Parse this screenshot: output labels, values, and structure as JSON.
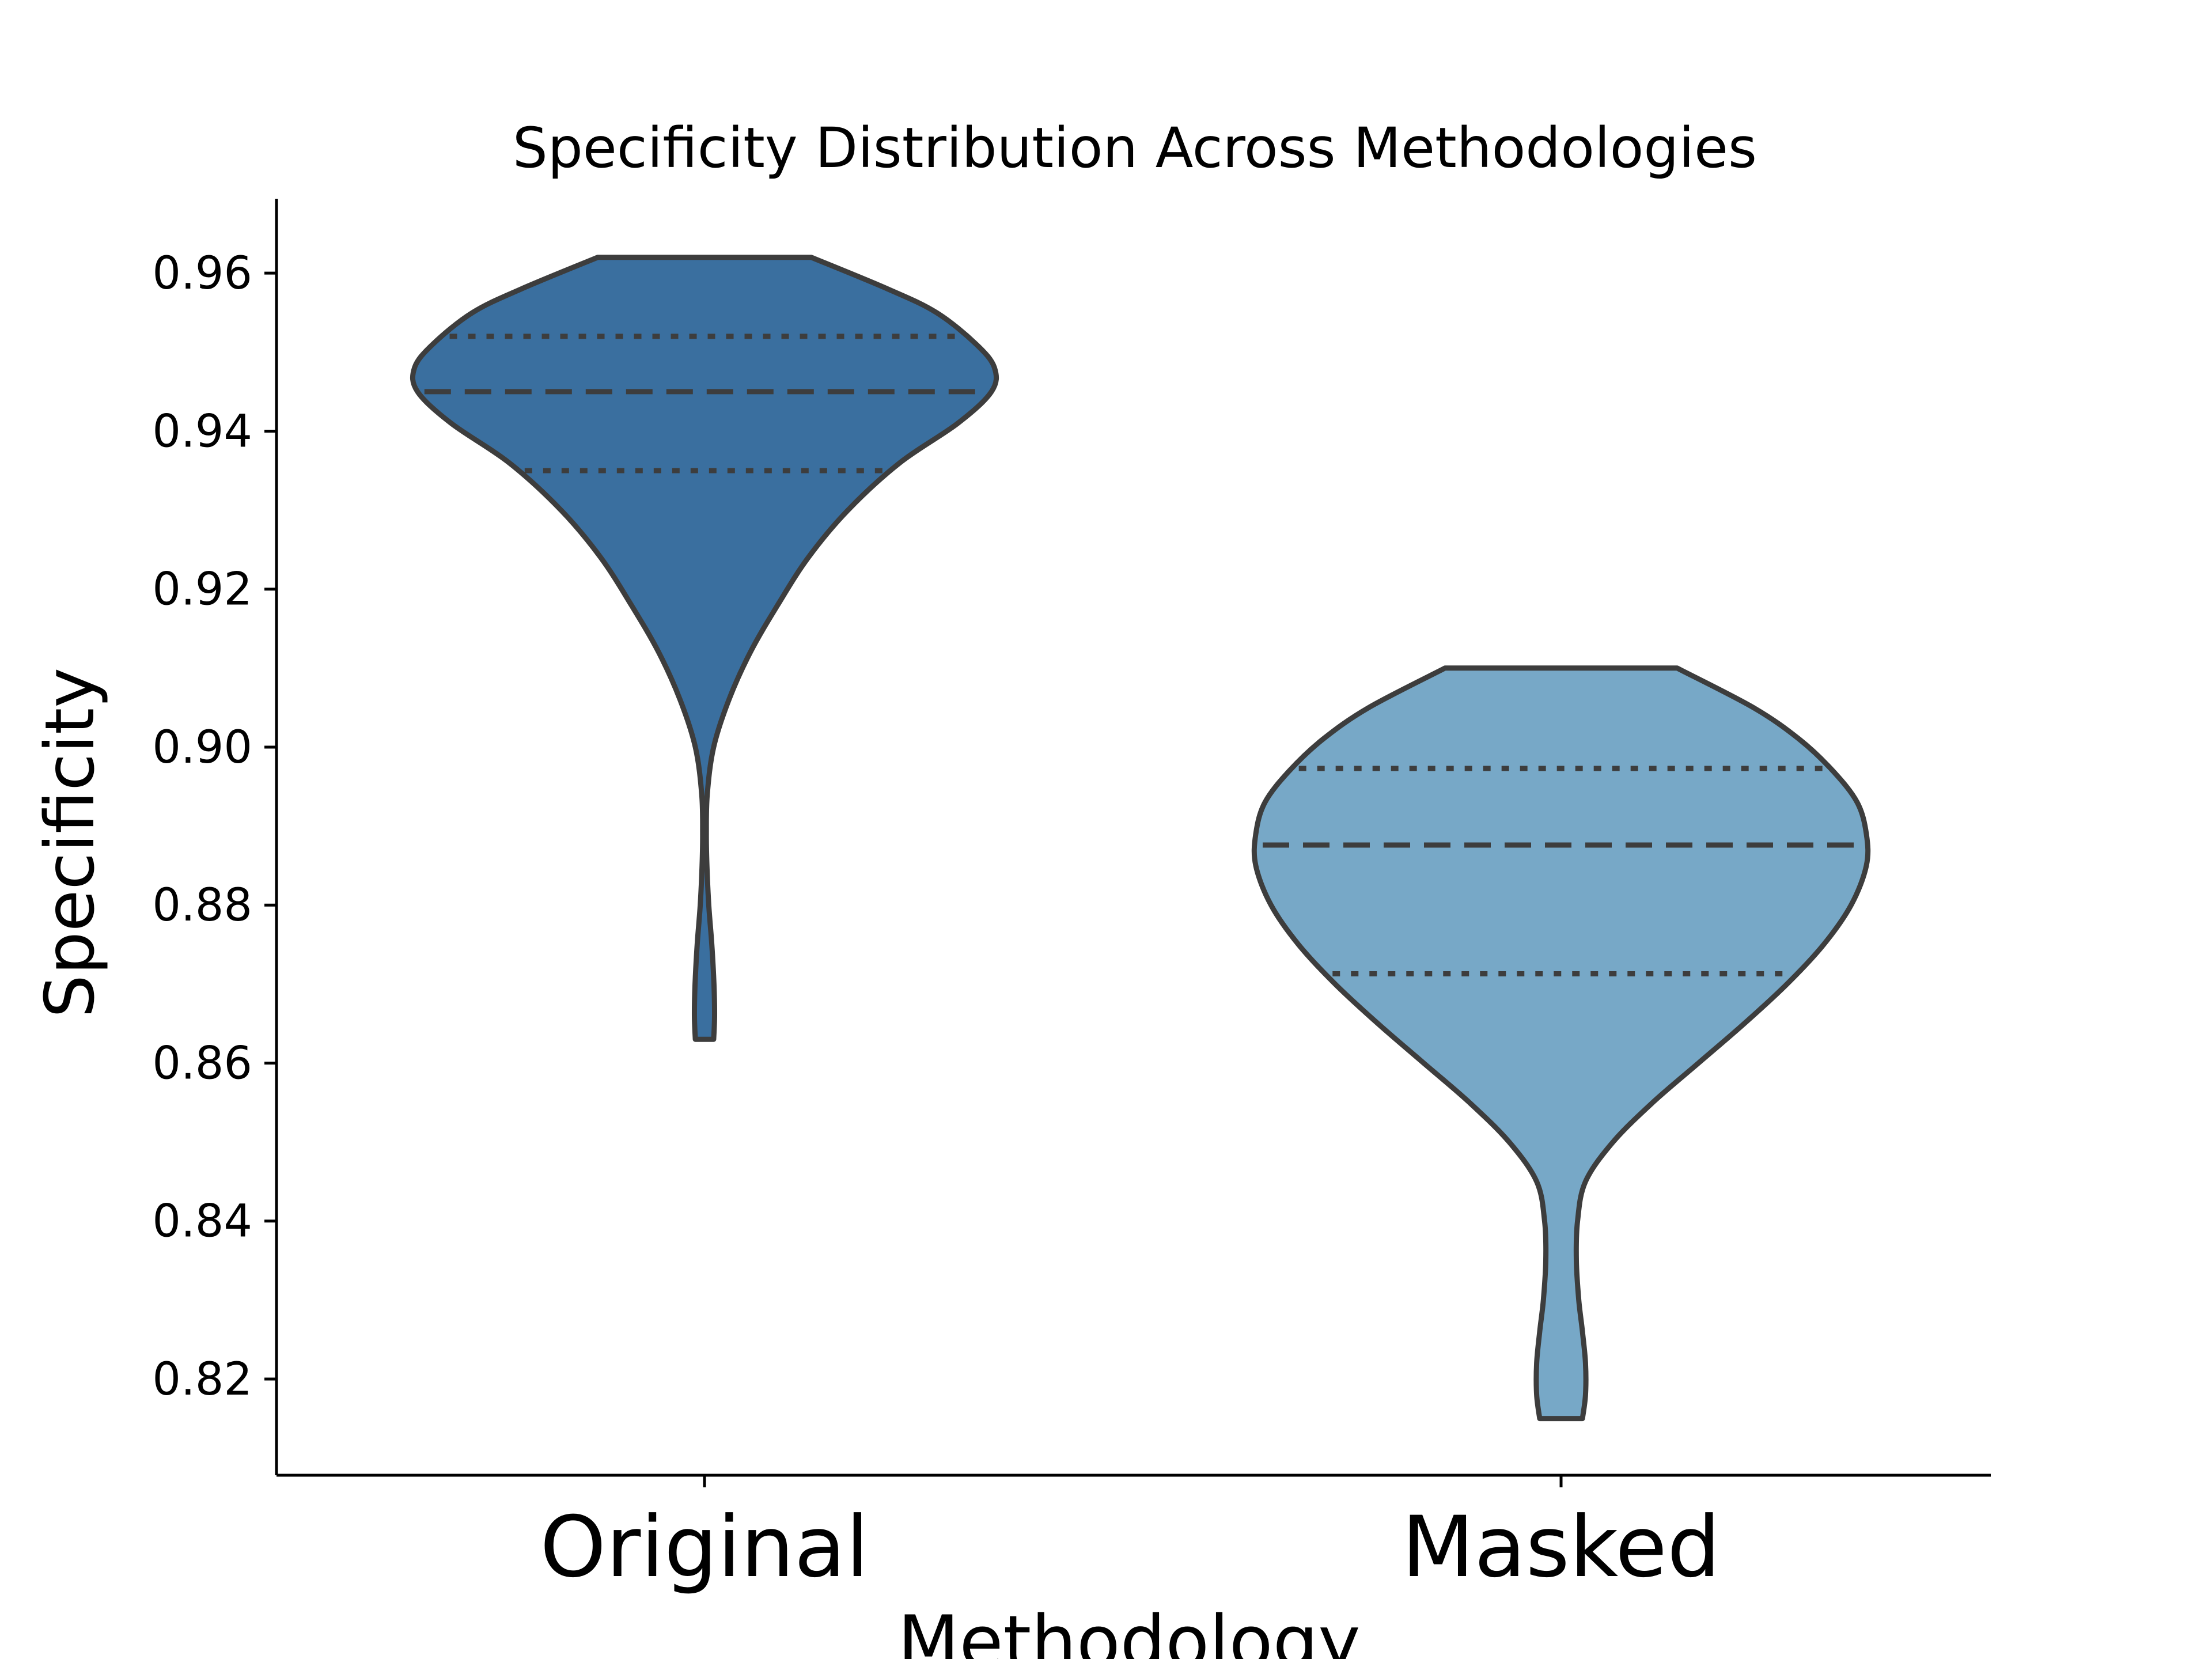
{
  "chart_data": {
    "type": "violin",
    "title": "Specificity Distribution Across Methodologies",
    "xlabel": "Methodology",
    "ylabel": "Specificity",
    "categories": [
      "Original",
      "Masked"
    ],
    "ylim": [
      0.808,
      0.969
    ],
    "yticks": [
      "0.82",
      "0.84",
      "0.86",
      "0.88",
      "0.90",
      "0.92",
      "0.94",
      "0.96"
    ],
    "grid": false,
    "inner": "quartile",
    "series": [
      {
        "category": "Original",
        "color": "#3a6f9f",
        "min": 0.863,
        "max": 0.962,
        "q1": 0.935,
        "median": 0.945,
        "q3": 0.952,
        "density": [
          [
            0.863,
            0.03
          ],
          [
            0.866,
            0.033
          ],
          [
            0.87,
            0.031
          ],
          [
            0.875,
            0.024
          ],
          [
            0.88,
            0.014
          ],
          [
            0.885,
            0.008
          ],
          [
            0.889,
            0.006
          ],
          [
            0.894,
            0.009
          ],
          [
            0.9,
            0.03
          ],
          [
            0.906,
            0.08
          ],
          [
            0.912,
            0.15
          ],
          [
            0.918,
            0.24
          ],
          [
            0.924,
            0.34
          ],
          [
            0.93,
            0.47
          ],
          [
            0.936,
            0.64
          ],
          [
            0.941,
            0.83
          ],
          [
            0.945,
            0.94
          ],
          [
            0.948,
            0.95
          ],
          [
            0.951,
            0.89
          ],
          [
            0.955,
            0.76
          ],
          [
            0.958,
            0.6
          ],
          [
            0.962,
            0.35
          ]
        ]
      },
      {
        "category": "Masked",
        "color": "#77a8c7",
        "min": 0.815,
        "max": 0.91,
        "q1": 0.8713,
        "median": 0.8876,
        "q3": 0.8973,
        "density": [
          [
            0.815,
            0.07
          ],
          [
            0.818,
            0.08
          ],
          [
            0.822,
            0.08
          ],
          [
            0.826,
            0.07
          ],
          [
            0.83,
            0.058
          ],
          [
            0.835,
            0.05
          ],
          [
            0.84,
            0.054
          ],
          [
            0.845,
            0.08
          ],
          [
            0.85,
            0.17
          ],
          [
            0.855,
            0.3
          ],
          [
            0.86,
            0.45
          ],
          [
            0.865,
            0.6
          ],
          [
            0.87,
            0.74
          ],
          [
            0.875,
            0.86
          ],
          [
            0.88,
            0.95
          ],
          [
            0.885,
            1.0
          ],
          [
            0.889,
            1.0
          ],
          [
            0.893,
            0.97
          ],
          [
            0.897,
            0.89
          ],
          [
            0.901,
            0.78
          ],
          [
            0.905,
            0.63
          ],
          [
            0.91,
            0.38
          ]
        ]
      }
    ]
  }
}
